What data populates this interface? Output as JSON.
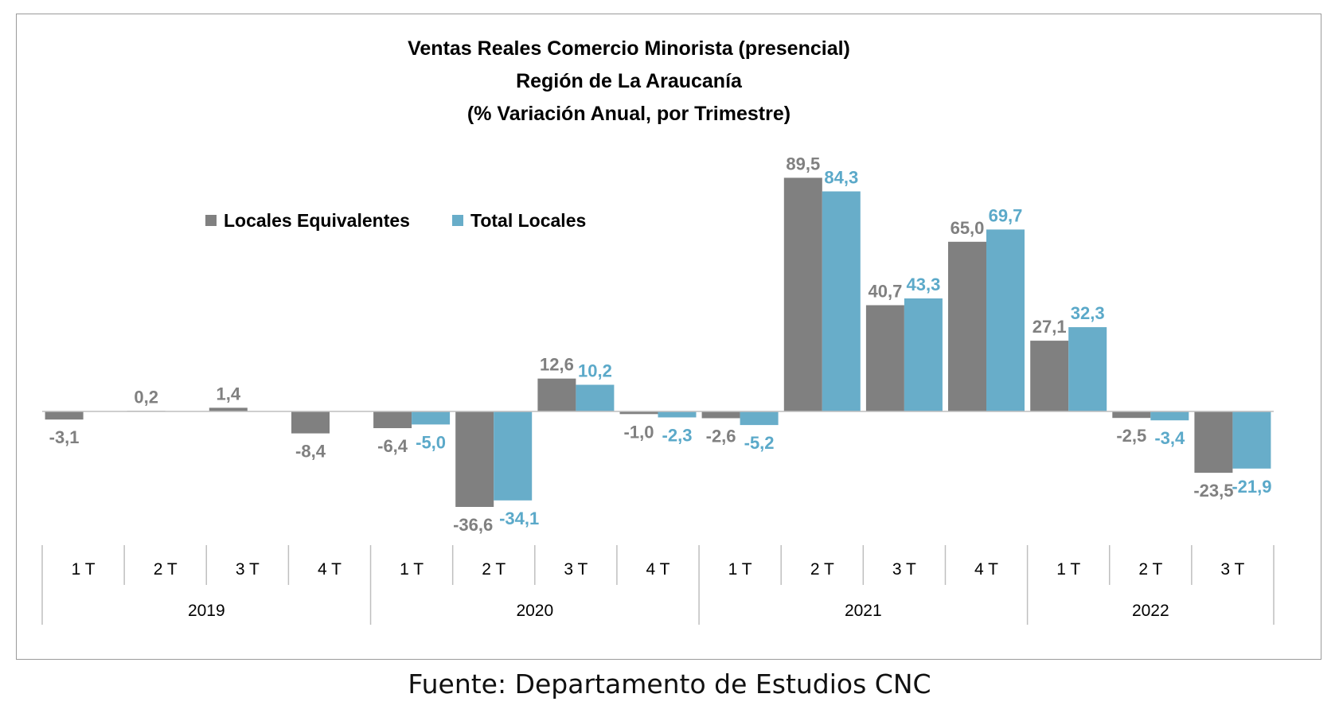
{
  "chart_data": {
    "type": "bar",
    "title": [
      "Ventas Reales Comercio Minorista  (presencial)",
      "Región de La Araucanía",
      "(% Variación Anual, por Trimestre)"
    ],
    "categories": [
      "1 T",
      "2 T",
      "3 T",
      "4 T",
      "1 T",
      "2 T",
      "3 T",
      "4 T",
      "1 T",
      "2 T",
      "3 T",
      "4 T",
      "1 T",
      "2 T",
      "3 T"
    ],
    "years": [
      {
        "label": "2019",
        "count": 4
      },
      {
        "label": "2020",
        "count": 4
      },
      {
        "label": "2021",
        "count": 4
      },
      {
        "label": "2022",
        "count": 3
      }
    ],
    "series": [
      {
        "name": "Locales Equivalentes",
        "color": "#808080",
        "label_color": "#808080",
        "values": [
          -3.1,
          0.2,
          1.4,
          -8.4,
          -6.4,
          -36.6,
          12.6,
          -1.0,
          -2.6,
          89.5,
          40.7,
          65.0,
          27.1,
          -2.5,
          -23.5
        ],
        "labels": [
          "-3,1",
          "0,2",
          "1,4",
          "-8,4",
          "-6,4",
          "-36,6",
          "12,6",
          "-1,0",
          "-2,6",
          "89,5",
          "40,7",
          "65,0",
          "27,1",
          "-2,5",
          "-23,5"
        ]
      },
      {
        "name": "Total Locales",
        "color": "#68adc9",
        "label_color": "#5ba9c9",
        "values": [
          null,
          null,
          null,
          null,
          -5.0,
          -34.1,
          10.2,
          -2.3,
          -5.2,
          84.3,
          43.3,
          69.7,
          32.3,
          -3.4,
          -21.9
        ],
        "labels": [
          null,
          null,
          null,
          null,
          "-5,0",
          "-34,1",
          "10,2",
          "-2,3",
          "-5,2",
          "84,3",
          "43,3",
          "69,7",
          "32,3",
          "-3,4",
          "-21,9"
        ]
      }
    ],
    "ylim": [
      -45,
      100
    ],
    "legend_position": "top-left",
    "grid": false,
    "xlabel": "",
    "ylabel": ""
  },
  "source_note": "Fuente: Departamento de Estudios CNC"
}
